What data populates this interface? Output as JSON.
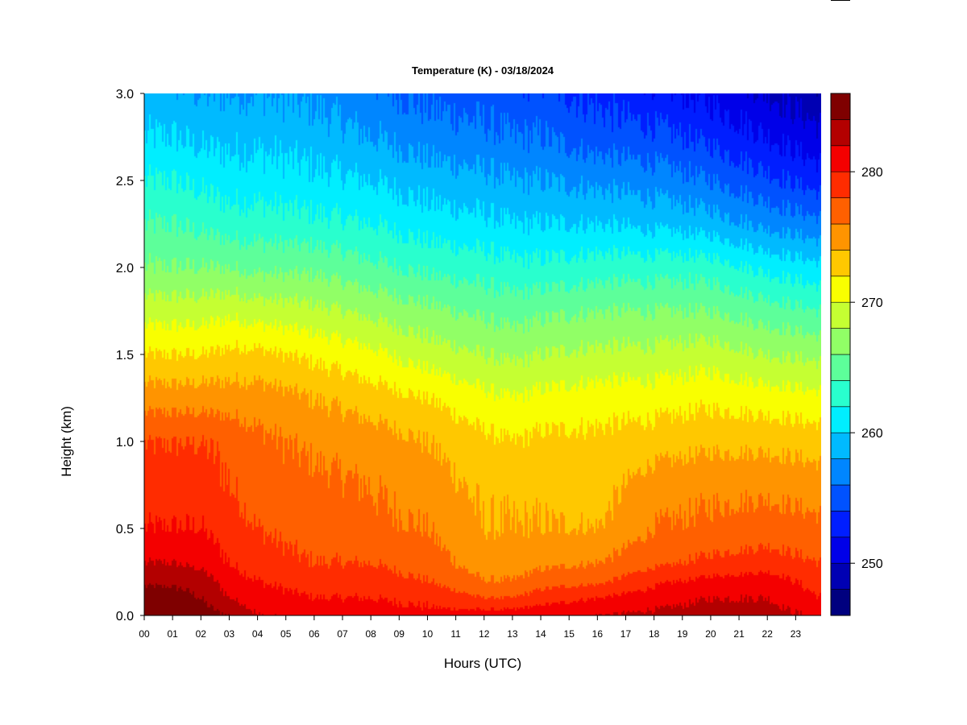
{
  "chart_data": {
    "type": "heatmap",
    "title": "Temperature (K) - 03/18/2024",
    "xlabel": "Hours (UTC)",
    "ylabel": "Height (km)",
    "x_ticks": [
      "00",
      "01",
      "02",
      "03",
      "04",
      "05",
      "06",
      "07",
      "08",
      "09",
      "10",
      "11",
      "12",
      "13",
      "14",
      "15",
      "16",
      "17",
      "18",
      "19",
      "20",
      "21",
      "22",
      "23"
    ],
    "x_range": [
      0,
      23.9
    ],
    "y_ticks": [
      "0.0",
      "0.5",
      "1.0",
      "1.5",
      "2.0",
      "2.5",
      "3.0"
    ],
    "y_range": [
      0,
      3.0
    ],
    "colorbar": {
      "range": [
        246,
        286
      ],
      "step": 2,
      "ticks": [
        "250",
        "260",
        "270",
        "280"
      ],
      "tick_values": [
        250,
        260,
        270,
        280
      ],
      "colors": [
        "#00007f",
        "#0000b3",
        "#0000e8",
        "#001eff",
        "#0052ff",
        "#0086ff",
        "#00baff",
        "#00eeff",
        "#29ffce",
        "#5dff9a",
        "#91ff66",
        "#c5ff32",
        "#f9ff00",
        "#ffc800",
        "#ff9400",
        "#ff6000",
        "#ff2c00",
        "#f40000",
        "#b30000",
        "#7f0000"
      ]
    },
    "temperature_profiles": {
      "heights_km": [
        0.0,
        0.1,
        0.2,
        0.3,
        0.5,
        0.75,
        1.0,
        1.25,
        1.5,
        1.75,
        2.0,
        2.25,
        2.5,
        2.75,
        3.0
      ],
      "hours": [
        0,
        1,
        2,
        3,
        4,
        6,
        8,
        10,
        12,
        13,
        14,
        16,
        18,
        20,
        22,
        23.9
      ],
      "values_K": [
        [
          286.5,
          285.0,
          283.5,
          282.0,
          280.0,
          279.0,
          278.0,
          275.0,
          272.0,
          269.0,
          266.0,
          264.0,
          262.0,
          260.0,
          258.5
        ],
        [
          286.5,
          285.0,
          283.5,
          282.0,
          280.0,
          279.0,
          278.0,
          275.0,
          272.0,
          269.0,
          266.0,
          264.0,
          262.0,
          260.0,
          258.5
        ],
        [
          285.0,
          284.0,
          283.0,
          281.5,
          280.0,
          279.0,
          278.0,
          275.0,
          272.0,
          269.0,
          266.0,
          263.5,
          261.5,
          259.5,
          258.0
        ],
        [
          284.0,
          282.0,
          281.0,
          280.0,
          279.0,
          278.0,
          277.5,
          275.0,
          272.5,
          269.5,
          266.0,
          263.0,
          261.0,
          259.5,
          258.0
        ],
        [
          282.0,
          281.0,
          280.0,
          279.0,
          278.0,
          277.0,
          276.5,
          275.0,
          272.5,
          269.0,
          265.5,
          263.0,
          261.0,
          259.5,
          258.0
        ],
        [
          281.5,
          280.0,
          279.0,
          278.0,
          277.0,
          276.5,
          275.5,
          274.0,
          271.5,
          268.5,
          265.5,
          262.5,
          260.5,
          259.0,
          257.5
        ],
        [
          281.0,
          280.0,
          279.0,
          278.0,
          276.5,
          276.0,
          275.0,
          273.0,
          270.5,
          267.5,
          264.5,
          262.0,
          260.0,
          258.0,
          256.5
        ],
        [
          280.5,
          279.5,
          278.0,
          277.0,
          276.0,
          275.0,
          274.0,
          272.0,
          269.0,
          266.5,
          263.5,
          261.0,
          259.0,
          257.0,
          255.5
        ],
        [
          281.0,
          278.0,
          276.0,
          275.0,
          274.0,
          273.5,
          272.5,
          270.5,
          268.0,
          265.5,
          263.0,
          260.5,
          258.5,
          256.5,
          255.0
        ],
        [
          281.0,
          278.0,
          276.0,
          275.0,
          274.0,
          273.5,
          272.0,
          270.0,
          267.5,
          265.0,
          262.5,
          260.0,
          258.0,
          256.0,
          254.5
        ],
        [
          281.5,
          279.0,
          277.0,
          275.5,
          274.0,
          273.5,
          272.5,
          270.5,
          268.0,
          265.5,
          262.5,
          260.0,
          258.0,
          256.0,
          254.5
        ],
        [
          282.0,
          280.0,
          277.5,
          276.0,
          274.0,
          273.0,
          272.5,
          271.0,
          268.5,
          266.0,
          263.0,
          260.0,
          257.5,
          255.0,
          253.5
        ],
        [
          282.5,
          281.0,
          279.5,
          277.5,
          276.0,
          275.0,
          273.0,
          271.0,
          268.5,
          266.0,
          263.0,
          259.5,
          257.0,
          254.5,
          252.5
        ],
        [
          283.0,
          282.0,
          280.5,
          278.5,
          276.5,
          275.5,
          273.5,
          271.5,
          269.0,
          266.0,
          263.0,
          259.0,
          256.0,
          253.5,
          251.5
        ],
        [
          283.0,
          282.0,
          281.0,
          279.0,
          277.0,
          275.5,
          273.5,
          271.0,
          268.0,
          265.0,
          261.5,
          257.5,
          254.5,
          252.0,
          250.0
        ],
        [
          281.5,
          280.0,
          279.0,
          278.0,
          276.5,
          275.0,
          273.0,
          270.5,
          267.5,
          264.0,
          260.5,
          256.5,
          253.0,
          250.5,
          248.5
        ]
      ]
    }
  }
}
